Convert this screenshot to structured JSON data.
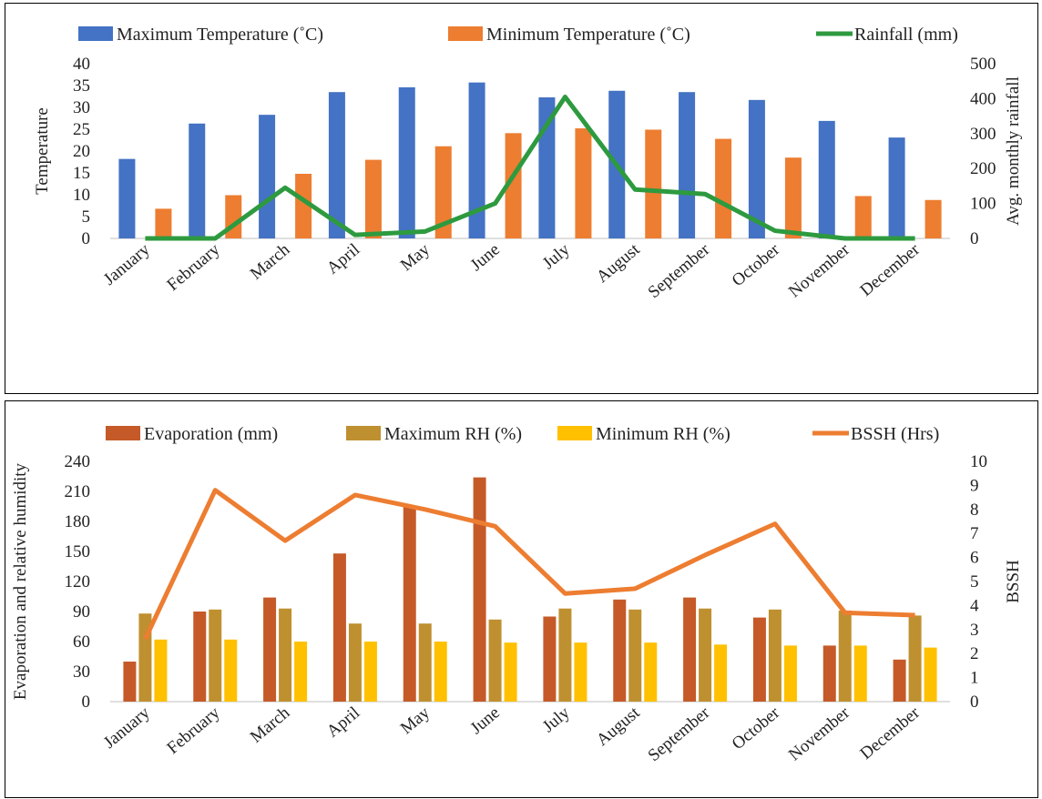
{
  "chart_data": [
    {
      "type": "bar",
      "categories": [
        "January",
        "February",
        "March",
        "April",
        "May",
        "June",
        "July",
        "August",
        "September",
        "October",
        "November",
        "December"
      ],
      "series": [
        {
          "name": "Maximum  Temperature (˚C)",
          "kind": "bar",
          "axis": "left",
          "color": "#4472C4",
          "values": [
            18.2,
            26.3,
            28.3,
            33.5,
            34.6,
            35.7,
            32.3,
            33.8,
            33.5,
            31.7,
            26.9,
            23.1
          ]
        },
        {
          "name": "Minimum  Temperature (˚C)",
          "kind": "bar",
          "axis": "left",
          "color": "#ED7D31",
          "values": [
            6.8,
            9.9,
            14.8,
            18.0,
            21.1,
            24.1,
            25.2,
            24.9,
            22.8,
            18.5,
            9.7,
            8.8
          ]
        },
        {
          "name": "Rainfall (mm)",
          "kind": "line",
          "axis": "right",
          "color": "#2E9A3F",
          "values": [
            0,
            0,
            145,
            10,
            20,
            100,
            405,
            140,
            127,
            22,
            0,
            0
          ]
        }
      ],
      "ylabel": "Temperature",
      "y2label": "Avg.  monthly rainfall",
      "ylim": [
        0,
        40
      ],
      "yticks": [
        "0",
        "5",
        "10",
        "15",
        "20",
        "25",
        "30",
        "35",
        "40"
      ],
      "y2lim": [
        0,
        500
      ],
      "y2ticks": [
        "0",
        "100",
        "200",
        "300",
        "400",
        "500"
      ],
      "legend_position": "top"
    },
    {
      "type": "bar",
      "categories": [
        "January",
        "February",
        "March",
        "April",
        "May",
        "June",
        "July",
        "August",
        "September",
        "October",
        "November",
        "December"
      ],
      "series": [
        {
          "name": "Evaporation (mm)",
          "kind": "bar",
          "axis": "left",
          "color": "#C55A28",
          "values": [
            40,
            90,
            104,
            148,
            195,
            224,
            85,
            102,
            104,
            84,
            56,
            42
          ]
        },
        {
          "name": "Maximum RH (%)",
          "kind": "bar",
          "axis": "left",
          "color": "#BF9030",
          "values": [
            88,
            92,
            93,
            78,
            78,
            82,
            93,
            92,
            93,
            92,
            91,
            86
          ]
        },
        {
          "name": "Minimum  RH (%)",
          "kind": "bar",
          "axis": "left",
          "color": "#FFC000",
          "values": [
            62,
            62,
            60,
            60,
            60,
            59,
            59,
            59,
            57,
            56,
            56,
            54
          ]
        },
        {
          "name": "BSSH (Hrs)",
          "kind": "line",
          "axis": "right",
          "color": "#ED7D31",
          "values": [
            2.6,
            8.8,
            6.7,
            8.6,
            8.0,
            7.3,
            4.5,
            4.7,
            6.1,
            7.4,
            3.7,
            3.6
          ]
        }
      ],
      "ylabel": "Evaporation and relative humidity",
      "y2label": "BSSH",
      "ylim": [
        0,
        240
      ],
      "yticks": [
        "0",
        "30",
        "60",
        "90",
        "120",
        "150",
        "180",
        "210",
        "240"
      ],
      "y2lim": [
        0,
        10
      ],
      "y2ticks": [
        "0",
        "1",
        "2",
        "3",
        "4",
        "5",
        "6",
        "7",
        "8",
        "9",
        "10"
      ],
      "legend_position": "top"
    }
  ]
}
